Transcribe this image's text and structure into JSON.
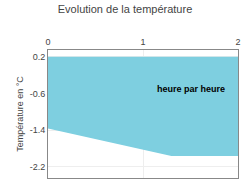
{
  "chart_data": {
    "type": "area",
    "title": "Evolution de la température",
    "ylabel": "Température en °C",
    "x": [
      0,
      1.3,
      2.0
    ],
    "values": [
      -1.35,
      -1.95,
      -1.95
    ],
    "fill_top": 0.2,
    "color": "#7ecfe0",
    "xlim": [
      0,
      2.0
    ],
    "xticks": [
      0,
      1,
      2
    ],
    "ylim": [
      -2.45,
      0.35
    ],
    "yticks": [
      0.2,
      -0.6,
      -1.4,
      -2.2
    ],
    "grid": true,
    "annotations": [
      {
        "text": "heure par heure",
        "x": 1.5,
        "y": -0.5
      }
    ]
  }
}
